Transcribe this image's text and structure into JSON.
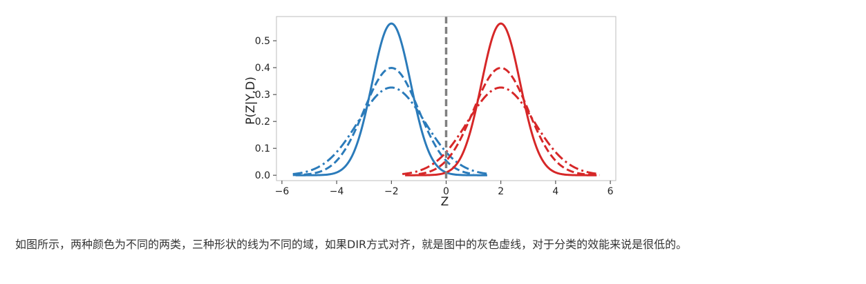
{
  "chart_data": {
    "type": "line",
    "title": "",
    "xlabel": "Z",
    "ylabel": "P(Z|Y,D)",
    "xlim": [
      -6.2,
      6.2
    ],
    "ylim": [
      -0.02,
      0.59
    ],
    "xticks": [
      -6,
      -4,
      -2,
      0,
      2,
      4,
      6
    ],
    "xtick_labels": [
      "−6",
      "−4",
      "−2",
      "0",
      "2",
      "4",
      "6"
    ],
    "yticks": [
      0.0,
      0.1,
      0.2,
      0.3,
      0.4,
      0.5
    ],
    "ytick_labels": [
      "0.0",
      "0.1",
      "0.2",
      "0.3",
      "0.4",
      "0.5"
    ],
    "grid": false,
    "legend": "none",
    "series": [
      {
        "class": "blue",
        "style": "solid",
        "color": "#2b7bba",
        "mean": -2,
        "sigma": 0.707,
        "peak": 0.564,
        "x_range": [
          -5.5,
          1.5
        ]
      },
      {
        "class": "blue",
        "style": "dashed",
        "color": "#2b7bba",
        "mean": -2,
        "sigma": 1.0,
        "peak": 0.399,
        "x_range": [
          -5.6,
          1.0
        ]
      },
      {
        "class": "blue",
        "style": "dash-dot",
        "color": "#2b7bba",
        "mean": -2,
        "sigma": 1.225,
        "peak": 0.326,
        "x_range": [
          -5.6,
          1.6
        ]
      },
      {
        "class": "red",
        "style": "solid",
        "color": "#d62728",
        "mean": 2,
        "sigma": 0.707,
        "peak": 0.564,
        "x_range": [
          -1.5,
          5.5
        ]
      },
      {
        "class": "red",
        "style": "dashed",
        "color": "#d62728",
        "mean": 2,
        "sigma": 1.0,
        "peak": 0.399,
        "x_range": [
          -1.0,
          5.6
        ]
      },
      {
        "class": "red",
        "style": "dash-dot",
        "color": "#d62728",
        "mean": 2,
        "sigma": 1.225,
        "peak": 0.326,
        "x_range": [
          -1.6,
          5.6
        ]
      }
    ],
    "annotations": [
      {
        "type": "vertical-line",
        "x": 0,
        "style": "dashed",
        "color": "#808080"
      }
    ]
  },
  "caption": "如图所示，两种颜色为不同的两类，三种形状的线为不同的域，如果DIR方式对齐，就是图中的灰色虚线，对于分类的效能来说是很低的。"
}
